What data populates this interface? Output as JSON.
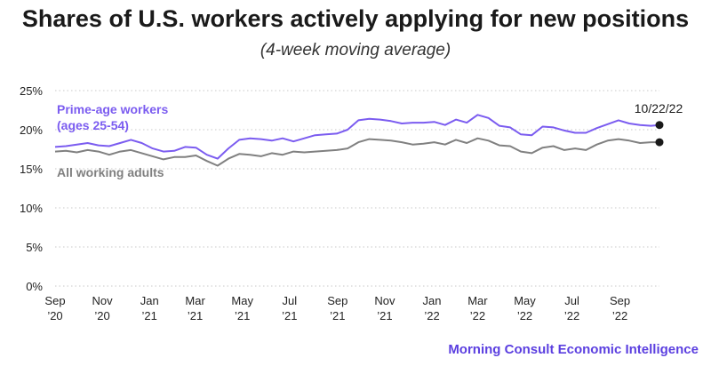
{
  "title": "Shares of U.S. workers actively applying for new positions",
  "subtitle": "(4-week moving average)",
  "credit": "Morning Consult Economic Intelligence",
  "colors": {
    "prime": "#7b5cf0",
    "all": "#808080",
    "credit": "#5b3fe0",
    "endpoint": "#1a1a1a"
  },
  "chart_data": {
    "type": "line",
    "title": "Shares of U.S. workers actively applying for new positions",
    "subtitle": "(4-week moving average)",
    "x_range": [
      "2020-09-01",
      "2022-10-22"
    ],
    "ylim": [
      0,
      25
    ],
    "y_ticks": [
      0,
      5,
      10,
      15,
      20,
      25
    ],
    "y_tick_labels": [
      "0%",
      "5%",
      "10%",
      "15%",
      "20%",
      "25%"
    ],
    "grid": "horizontal dotted",
    "x_ticks": [
      {
        "date": "2020-09-01",
        "line1": "Sep",
        "line2": "’20"
      },
      {
        "date": "2020-11-01",
        "line1": "Nov",
        "line2": "’20"
      },
      {
        "date": "2021-01-01",
        "line1": "Jan",
        "line2": "’21"
      },
      {
        "date": "2021-03-01",
        "line1": "Mar",
        "line2": "’21"
      },
      {
        "date": "2021-05-01",
        "line1": "May",
        "line2": "’21"
      },
      {
        "date": "2021-07-01",
        "line1": "Jul",
        "line2": "’21"
      },
      {
        "date": "2021-09-01",
        "line1": "Sep",
        "line2": "’21"
      },
      {
        "date": "2021-11-01",
        "line1": "Nov",
        "line2": "’21"
      },
      {
        "date": "2022-01-01",
        "line1": "Jan",
        "line2": "’22"
      },
      {
        "date": "2022-03-01",
        "line1": "Mar",
        "line2": "’22"
      },
      {
        "date": "2022-05-01",
        "line1": "May",
        "line2": "’22"
      },
      {
        "date": "2022-07-01",
        "line1": "Jul",
        "line2": "’22"
      },
      {
        "date": "2022-09-01",
        "line1": "Sep",
        "line2": "’22"
      }
    ],
    "endpoint_label": "10/22/22",
    "series": [
      {
        "name": "Prime-age workers (ages 25-54)",
        "label_lines": [
          "Prime-age workers",
          "(ages 25-54)"
        ],
        "color": "#7b5cf0",
        "points": [
          [
            "2020-09-01",
            17.8
          ],
          [
            "2020-09-15",
            17.9
          ],
          [
            "2020-09-29",
            18.1
          ],
          [
            "2020-10-13",
            18.3
          ],
          [
            "2020-10-27",
            18.0
          ],
          [
            "2020-11-10",
            17.9
          ],
          [
            "2020-11-24",
            18.3
          ],
          [
            "2020-12-08",
            18.7
          ],
          [
            "2020-12-22",
            18.3
          ],
          [
            "2021-01-05",
            17.6
          ],
          [
            "2021-01-19",
            17.2
          ],
          [
            "2021-02-02",
            17.3
          ],
          [
            "2021-02-16",
            17.8
          ],
          [
            "2021-03-02",
            17.7
          ],
          [
            "2021-03-16",
            16.8
          ],
          [
            "2021-03-30",
            16.3
          ],
          [
            "2021-04-13",
            17.6
          ],
          [
            "2021-04-27",
            18.7
          ],
          [
            "2021-05-11",
            18.9
          ],
          [
            "2021-05-25",
            18.8
          ],
          [
            "2021-06-08",
            18.6
          ],
          [
            "2021-06-22",
            18.9
          ],
          [
            "2021-07-06",
            18.5
          ],
          [
            "2021-07-20",
            18.9
          ],
          [
            "2021-08-03",
            19.3
          ],
          [
            "2021-08-17",
            19.4
          ],
          [
            "2021-08-31",
            19.5
          ],
          [
            "2021-09-14",
            20.0
          ],
          [
            "2021-09-28",
            21.2
          ],
          [
            "2021-10-12",
            21.4
          ],
          [
            "2021-10-26",
            21.3
          ],
          [
            "2021-11-09",
            21.1
          ],
          [
            "2021-11-23",
            20.8
          ],
          [
            "2021-12-07",
            20.9
          ],
          [
            "2021-12-21",
            20.9
          ],
          [
            "2022-01-04",
            21.0
          ],
          [
            "2022-01-18",
            20.6
          ],
          [
            "2022-02-01",
            21.3
          ],
          [
            "2022-02-15",
            20.9
          ],
          [
            "2022-03-01",
            21.9
          ],
          [
            "2022-03-15",
            21.5
          ],
          [
            "2022-03-29",
            20.5
          ],
          [
            "2022-04-12",
            20.3
          ],
          [
            "2022-04-26",
            19.4
          ],
          [
            "2022-05-10",
            19.3
          ],
          [
            "2022-05-24",
            20.4
          ],
          [
            "2022-06-07",
            20.3
          ],
          [
            "2022-06-21",
            19.9
          ],
          [
            "2022-07-05",
            19.6
          ],
          [
            "2022-07-19",
            19.6
          ],
          [
            "2022-08-02",
            20.2
          ],
          [
            "2022-08-16",
            20.7
          ],
          [
            "2022-08-30",
            21.2
          ],
          [
            "2022-09-13",
            20.8
          ],
          [
            "2022-09-27",
            20.6
          ],
          [
            "2022-10-11",
            20.5
          ],
          [
            "2022-10-22",
            20.6
          ]
        ]
      },
      {
        "name": "All working adults",
        "label_lines": [
          "All working adults"
        ],
        "color": "#808080",
        "points": [
          [
            "2020-09-01",
            17.2
          ],
          [
            "2020-09-15",
            17.3
          ],
          [
            "2020-09-29",
            17.1
          ],
          [
            "2020-10-13",
            17.4
          ],
          [
            "2020-10-27",
            17.2
          ],
          [
            "2020-11-10",
            16.8
          ],
          [
            "2020-11-24",
            17.2
          ],
          [
            "2020-12-08",
            17.4
          ],
          [
            "2020-12-22",
            17.0
          ],
          [
            "2021-01-05",
            16.6
          ],
          [
            "2021-01-19",
            16.2
          ],
          [
            "2021-02-02",
            16.5
          ],
          [
            "2021-02-16",
            16.5
          ],
          [
            "2021-03-02",
            16.7
          ],
          [
            "2021-03-16",
            16.0
          ],
          [
            "2021-03-30",
            15.4
          ],
          [
            "2021-04-13",
            16.3
          ],
          [
            "2021-04-27",
            16.9
          ],
          [
            "2021-05-11",
            16.8
          ],
          [
            "2021-05-25",
            16.6
          ],
          [
            "2021-06-08",
            17.0
          ],
          [
            "2021-06-22",
            16.8
          ],
          [
            "2021-07-06",
            17.2
          ],
          [
            "2021-07-20",
            17.1
          ],
          [
            "2021-08-03",
            17.2
          ],
          [
            "2021-08-17",
            17.3
          ],
          [
            "2021-08-31",
            17.4
          ],
          [
            "2021-09-14",
            17.6
          ],
          [
            "2021-09-28",
            18.4
          ],
          [
            "2021-10-12",
            18.8
          ],
          [
            "2021-10-26",
            18.7
          ],
          [
            "2021-11-09",
            18.6
          ],
          [
            "2021-11-23",
            18.4
          ],
          [
            "2021-12-07",
            18.1
          ],
          [
            "2021-12-21",
            18.2
          ],
          [
            "2022-01-04",
            18.4
          ],
          [
            "2022-01-18",
            18.1
          ],
          [
            "2022-02-01",
            18.7
          ],
          [
            "2022-02-15",
            18.3
          ],
          [
            "2022-03-01",
            18.9
          ],
          [
            "2022-03-15",
            18.6
          ],
          [
            "2022-03-29",
            18.0
          ],
          [
            "2022-04-12",
            17.9
          ],
          [
            "2022-04-26",
            17.2
          ],
          [
            "2022-05-10",
            17.0
          ],
          [
            "2022-05-24",
            17.7
          ],
          [
            "2022-06-07",
            17.9
          ],
          [
            "2022-06-21",
            17.4
          ],
          [
            "2022-07-05",
            17.6
          ],
          [
            "2022-07-19",
            17.4
          ],
          [
            "2022-08-02",
            18.1
          ],
          [
            "2022-08-16",
            18.6
          ],
          [
            "2022-08-30",
            18.8
          ],
          [
            "2022-09-13",
            18.6
          ],
          [
            "2022-09-27",
            18.3
          ],
          [
            "2022-10-11",
            18.4
          ],
          [
            "2022-10-22",
            18.4
          ]
        ]
      }
    ]
  }
}
